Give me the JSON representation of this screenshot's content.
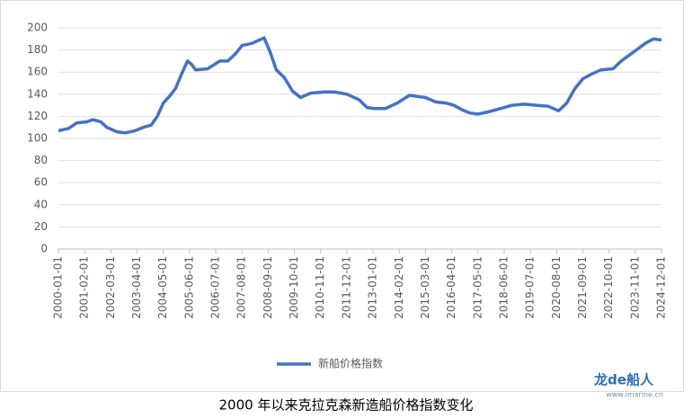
{
  "chart_data": {
    "type": "line",
    "title": "2000 年以来克拉克森新造船价格指数变化",
    "x": [
      "2000-01-01",
      "2000-06-01",
      "2000-10-01",
      "2001-03-01",
      "2001-06-01",
      "2001-10-01",
      "2002-01-01",
      "2002-06-01",
      "2002-10-01",
      "2003-03-01",
      "2003-07-01",
      "2003-11-01",
      "2004-02-01",
      "2004-05-01",
      "2004-08-01",
      "2004-11-01",
      "2005-02-01",
      "2005-05-01",
      "2005-07-01",
      "2005-09-01",
      "2006-03-01",
      "2006-09-01",
      "2007-01-01",
      "2007-05-01",
      "2007-08-01",
      "2008-01-01",
      "2008-07-01",
      "2008-10-01",
      "2009-01-01",
      "2009-05-01",
      "2009-09-01",
      "2010-01-01",
      "2010-06-01",
      "2011-01-01",
      "2011-06-01",
      "2011-12-01",
      "2012-06-01",
      "2012-10-01",
      "2013-02-01",
      "2013-07-01",
      "2014-01-01",
      "2014-07-01",
      "2014-11-01",
      "2015-03-01",
      "2015-08-01",
      "2016-01-01",
      "2016-05-01",
      "2016-09-01",
      "2017-01-01",
      "2017-05-01",
      "2017-10-01",
      "2018-04-01",
      "2018-10-01",
      "2019-04-01",
      "2019-10-01",
      "2020-04-01",
      "2020-09-01",
      "2021-01-01",
      "2021-05-01",
      "2021-09-01",
      "2022-01-01",
      "2022-06-01",
      "2022-12-01",
      "2023-04-01",
      "2023-10-01",
      "2024-04-01",
      "2024-08-01",
      "2024-12-01"
    ],
    "series": [
      {
        "name": "新船价格指数",
        "color": "#4472c4",
        "values": [
          107,
          109,
          114,
          115,
          117,
          115,
          110,
          106,
          105,
          107,
          110,
          112,
          120,
          132,
          138,
          145,
          158,
          170,
          167,
          162,
          163,
          170,
          170,
          177,
          184,
          186,
          191,
          178,
          162,
          155,
          143,
          137,
          141,
          142,
          142,
          140,
          135,
          128,
          127,
          127,
          132,
          139,
          138,
          137,
          133,
          132,
          130,
          126,
          123,
          122,
          124,
          127,
          130,
          131,
          130,
          129,
          125,
          132,
          145,
          154,
          158,
          162,
          163,
          170,
          178,
          186,
          190,
          189
        ]
      }
    ],
    "xlim": [
      "2000-01-01",
      "2024-12-01"
    ],
    "xticks": [
      "2000-01-01",
      "2001-02-01",
      "2002-03-01",
      "2003-04-01",
      "2004-05-01",
      "2005-06-01",
      "2006-07-01",
      "2007-08-01",
      "2008-09-01",
      "2009-10-01",
      "2010-11-01",
      "2011-12-01",
      "2013-01-01",
      "2014-02-01",
      "2015-03-01",
      "2016-04-01",
      "2017-05-01",
      "2018-06-01",
      "2019-07-01",
      "2020-08-01",
      "2021-09-01",
      "2022-10-01",
      "2023-11-01",
      "2024-12-01"
    ],
    "ylim": [
      0,
      200
    ],
    "yticks": [
      0,
      20,
      40,
      60,
      80,
      100,
      120,
      140,
      160,
      180,
      200
    ],
    "grid": true,
    "legend": "bottom"
  },
  "watermark": {
    "logo": "龙de船人",
    "url": "www.imarine.cn"
  }
}
